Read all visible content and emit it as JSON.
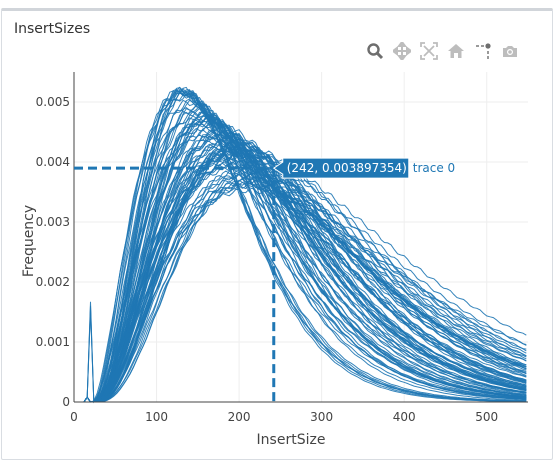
{
  "panel": {
    "title": "InsertSizes"
  },
  "modebar": {
    "icons": [
      "zoom-icon",
      "pan-icon",
      "autoscale-icon",
      "home-icon",
      "spike-lines-icon",
      "camera-icon"
    ]
  },
  "chart_data": {
    "type": "line",
    "xlabel": "InsertSize",
    "ylabel": "Frequency",
    "xlim": [
      0,
      550
    ],
    "ylim": [
      0,
      0.0055
    ],
    "x_ticks": [
      0,
      100,
      200,
      300,
      400,
      500
    ],
    "y_ticks": [
      0,
      0.001,
      0.002,
      0.003,
      0.004,
      0.005
    ],
    "x_tick_labels": [
      "0",
      "100",
      "200",
      "300",
      "400",
      "500"
    ],
    "y_tick_labels": [
      "0",
      "0.001",
      "0.002",
      "0.003",
      "0.004",
      "0.005"
    ],
    "grid": true,
    "line_color": "#1f77b4",
    "series_shape": {
      "count": 90,
      "peak_x_range": [
        130,
        215
      ],
      "peak_y_range": [
        0.0037,
        0.0052
      ],
      "spike": {
        "x": 18,
        "y": 0.00167
      }
    },
    "hover": {
      "x": 242,
      "y": 0.003897354,
      "label": "(242, 0.003897354)",
      "trace_name": "trace 0"
    }
  }
}
